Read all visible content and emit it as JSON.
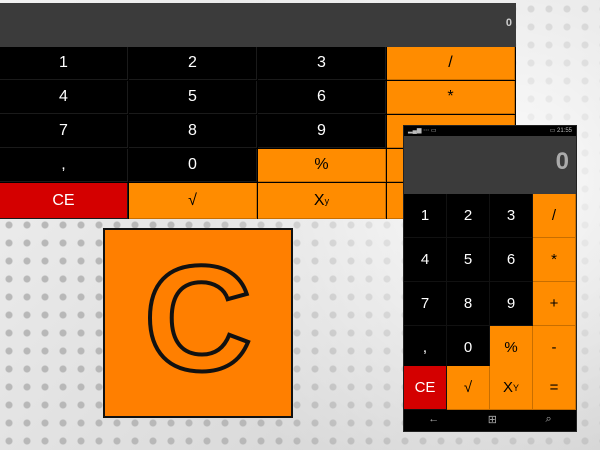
{
  "wide_calc": {
    "display_value": "0",
    "keys": [
      "1",
      "2",
      "3",
      "/",
      "4",
      "5",
      "6",
      "*",
      "7",
      "8",
      "9",
      "+",
      ",",
      "0",
      "%",
      "-",
      "CE",
      "√",
      "X",
      "="
    ],
    "power_sup": "y"
  },
  "logo": {
    "letter": "C"
  },
  "phone_calc": {
    "status_left": "▂▄▆ ⋯ ▭",
    "status_right": "▭ 21:55",
    "display_value": "0",
    "keys": [
      "1",
      "2",
      "3",
      "/",
      "4",
      "5",
      "6",
      "*",
      "7",
      "8",
      "9",
      "+",
      ",",
      "0",
      "%",
      "-",
      "CE",
      "√",
      "X",
      "="
    ],
    "power_sup": "Y",
    "nav": {
      "back": "←",
      "home": "⊞",
      "search": "⌕"
    }
  },
  "colors": {
    "orange": "#ff8c00",
    "red": "#d40000",
    "display_bg": "#3b3b3b"
  }
}
